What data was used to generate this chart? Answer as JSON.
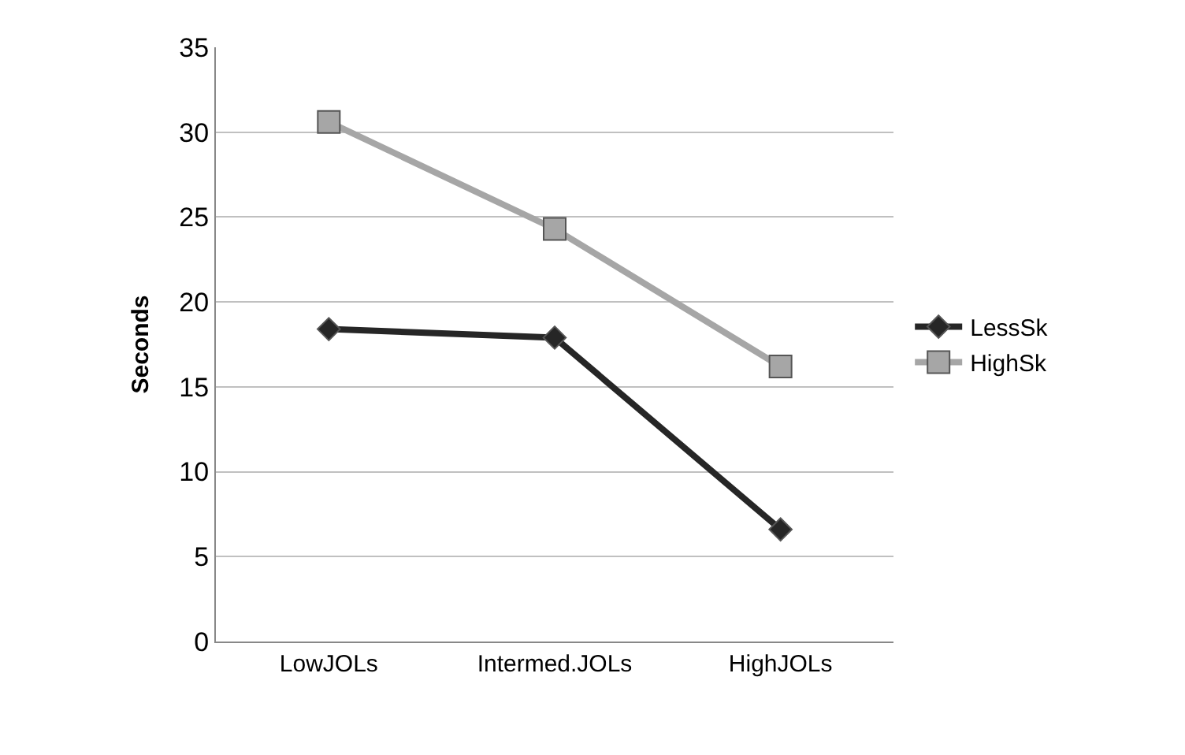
{
  "chart_data": {
    "type": "line",
    "ylabel": "Seconds",
    "categories": [
      "LowJOLs",
      "Intermed.JOLs",
      "HighJOLs"
    ],
    "series": [
      {
        "name": "LessSk",
        "color": "#262626",
        "values": [
          18.4,
          17.9,
          6.6
        ],
        "marker": "diamond"
      },
      {
        "name": "HighSk",
        "color": "#a6a6a6",
        "values": [
          30.6,
          24.3,
          16.2
        ],
        "marker": "square"
      }
    ],
    "ylim": [
      0,
      35
    ],
    "yticks": [
      0,
      5,
      10,
      15,
      20,
      25,
      30,
      35
    ],
    "grid": "y",
    "legend": "right",
    "line_style": "solid"
  }
}
